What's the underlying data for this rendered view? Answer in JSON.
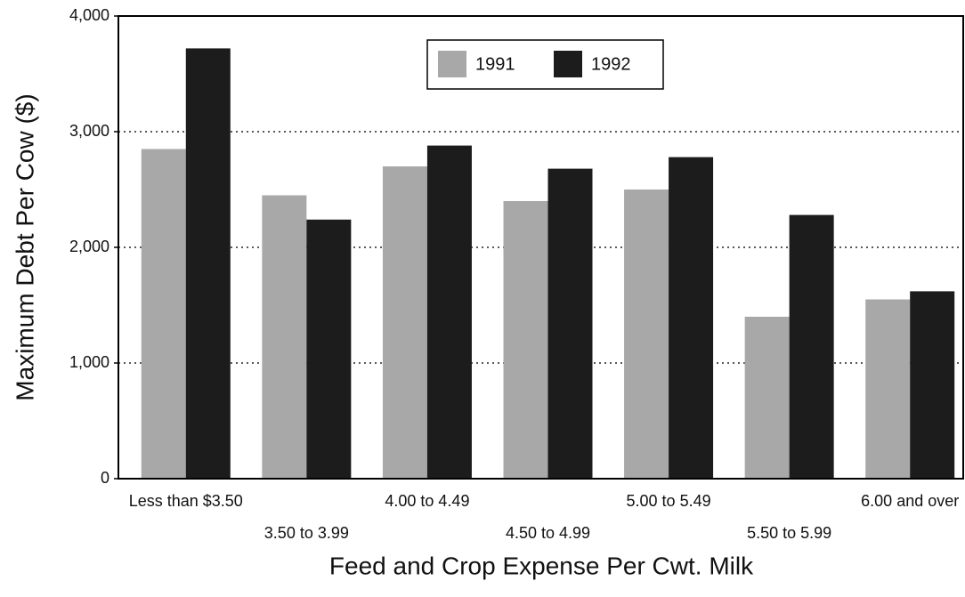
{
  "chart_data": {
    "type": "bar",
    "xlabel": "Feed and Crop Expense Per Cwt. Milk",
    "ylabel": "Maximum Debt Per Cow ($)",
    "categories": [
      "Less than $3.50",
      "3.50 to 3.99",
      "4.00 to 4.49",
      "4.50 to 4.99",
      "5.00 to 5.49",
      "5.50 to 5.99",
      "6.00 and over"
    ],
    "series": [
      {
        "name": "1991",
        "color": "#a8a8a8",
        "values": [
          2850,
          2450,
          2700,
          2400,
          2500,
          1400,
          1550
        ]
      },
      {
        "name": "1992",
        "color": "#1c1c1c",
        "values": [
          3720,
          2240,
          2880,
          2680,
          2780,
          2280,
          1620
        ]
      }
    ],
    "ylim": [
      0,
      4000
    ],
    "yticks": [
      0,
      {
        "value": 1000,
        "label": "1,000"
      },
      {
        "value": 2000,
        "label": "2,000"
      },
      {
        "value": 3000,
        "label": "3,000"
      },
      {
        "value": 4000,
        "label": "4,000"
      }
    ],
    "grid": true,
    "legend": "top"
  }
}
